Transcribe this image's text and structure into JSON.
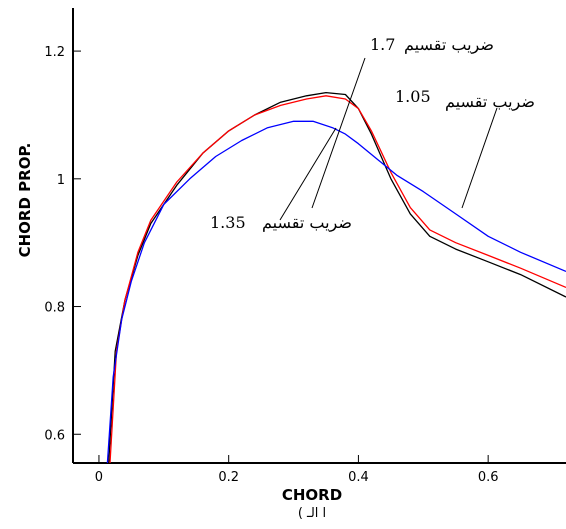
{
  "chart_data": {
    "type": "line",
    "title": "",
    "xlabel": "CHORD",
    "xlabel_sub": "( ا الـ",
    "ylabel": "CHORD PROP.",
    "xlim": [
      -0.04,
      0.72
    ],
    "ylim": [
      0.555,
      1.28
    ],
    "xticks": [
      0,
      0.2,
      0.4,
      0.6
    ],
    "xtick_labels": [
      "0",
      "0.2",
      "0.4",
      "0.6"
    ],
    "yticks": [
      0.6,
      0.8,
      1.0,
      1.2
    ],
    "ytick_labels": [
      "0.6",
      "0.8",
      "1",
      "1.2"
    ],
    "grid": false,
    "series": [
      {
        "color": "#000000",
        "x": [
          0.015,
          0.025,
          0.04,
          0.06,
          0.08,
          0.12,
          0.16,
          0.2,
          0.24,
          0.28,
          0.32,
          0.35,
          0.38,
          0.4,
          0.42,
          0.45,
          0.48,
          0.51,
          0.55,
          0.6,
          0.65,
          0.72
        ],
        "y": [
          0.555,
          0.73,
          0.81,
          0.88,
          0.93,
          0.99,
          1.04,
          1.075,
          1.1,
          1.12,
          1.13,
          1.135,
          1.132,
          1.11,
          1.07,
          1.0,
          0.945,
          0.91,
          0.89,
          0.87,
          0.85,
          0.815
        ]
      },
      {
        "color": "#ff0000",
        "x": [
          0.017,
          0.027,
          0.04,
          0.06,
          0.08,
          0.12,
          0.16,
          0.2,
          0.24,
          0.28,
          0.32,
          0.35,
          0.38,
          0.4,
          0.42,
          0.45,
          0.48,
          0.51,
          0.55,
          0.6,
          0.65,
          0.72
        ],
        "y": [
          0.555,
          0.73,
          0.81,
          0.885,
          0.935,
          0.995,
          1.04,
          1.075,
          1.1,
          1.115,
          1.125,
          1.13,
          1.125,
          1.11,
          1.075,
          1.01,
          0.955,
          0.92,
          0.9,
          0.88,
          0.86,
          0.83
        ]
      },
      {
        "color": "#0000ff",
        "x": [
          0.013,
          0.022,
          0.035,
          0.05,
          0.07,
          0.1,
          0.14,
          0.18,
          0.22,
          0.26,
          0.3,
          0.33,
          0.36,
          0.38,
          0.4,
          0.43,
          0.46,
          0.5,
          0.55,
          0.6,
          0.65,
          0.72
        ],
        "y": [
          0.555,
          0.69,
          0.78,
          0.84,
          0.9,
          0.96,
          1.0,
          1.035,
          1.06,
          1.08,
          1.09,
          1.09,
          1.08,
          1.07,
          1.055,
          1.03,
          1.005,
          0.98,
          0.945,
          0.91,
          0.885,
          0.855
        ]
      }
    ],
    "annotations": [
      {
        "label": "ضريب تقسيم",
        "value": "1.7"
      },
      {
        "label": "ضريب تقسيم",
        "value": "1.05"
      },
      {
        "label": "ضريب تقسيم",
        "value": "1.35"
      }
    ]
  }
}
